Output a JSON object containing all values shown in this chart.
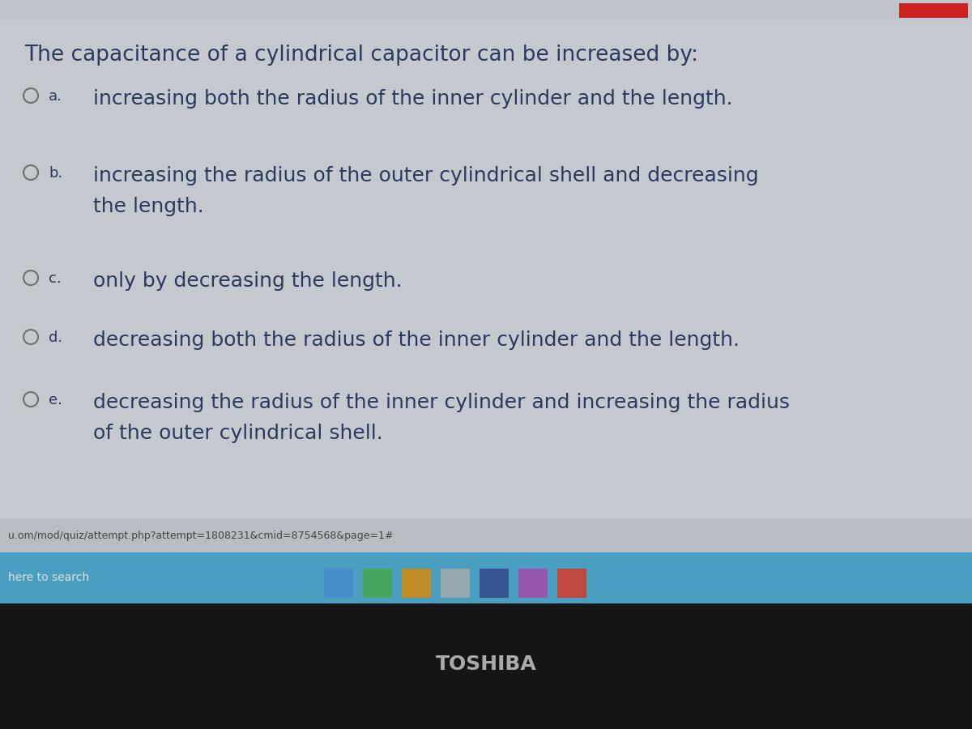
{
  "title": "The capacitance of a cylindrical capacitor can be increased by:",
  "options": [
    {
      "label": "a.",
      "text": "increasing both the radius of the inner cylinder and the length.",
      "multiline": false
    },
    {
      "label": "b.",
      "text": "increasing the radius of the outer cylindrical shell and decreasing\nthe length.",
      "multiline": true
    },
    {
      "label": "c.",
      "text": "only by decreasing the length.",
      "multiline": false
    },
    {
      "label": "d.",
      "text": "decreasing both the radius of the inner cylinder and the length.",
      "multiline": false
    },
    {
      "label": "e.",
      "text": "decreasing the radius of the inner cylinder and increasing the radius\nof the outer cylindrical shell.",
      "multiline": true
    }
  ],
  "bg_color": "#c8cdd4",
  "content_bg": "#c5cad1",
  "text_color": "#2b3a5c",
  "title_fontsize": 19,
  "option_fontsize": 18,
  "label_fontsize": 13,
  "url_text": "u.om/mod/quiz/attempt.php?attempt=1808231&cmid=8754568&page=1#",
  "search_text": "here to search",
  "toshiba_text": "TOSHIBA",
  "taskbar_bg": "#4a9fc0",
  "taskbar_text_color": "#ffffff",
  "bottom_bg": "#151515",
  "toshiba_color": "#aaaaaa",
  "top_bar_color": "#c0c5cc",
  "red_rect_color": "#cc2222"
}
